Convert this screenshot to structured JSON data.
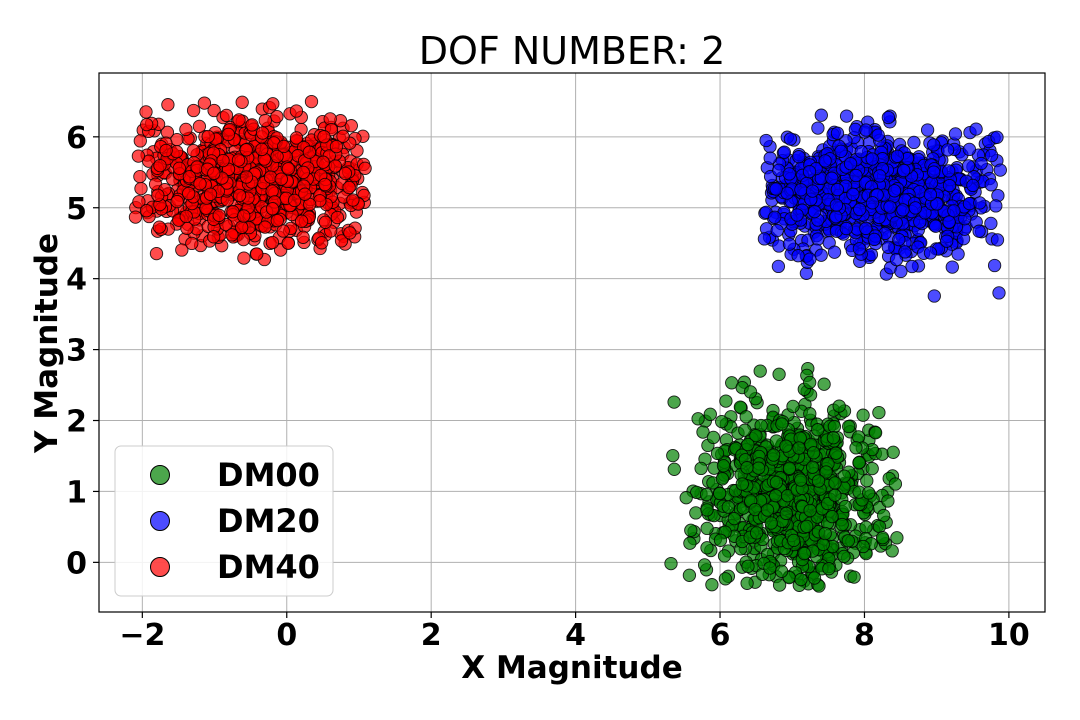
{
  "chart_data": {
    "type": "scatter",
    "title": "DOF NUMBER: 2",
    "xlabel": "X Magnitude",
    "ylabel": "Y Magnitude",
    "xlim": [
      -2.6,
      10.5
    ],
    "ylim": [
      -0.7,
      6.9
    ],
    "xticks": [
      -2,
      0,
      2,
      4,
      6,
      8,
      10
    ],
    "xtick_labels": [
      "−2",
      "0",
      "2",
      "4",
      "6",
      "8",
      "10"
    ],
    "yticks": [
      0,
      1,
      2,
      3,
      4,
      5,
      6
    ],
    "ytick_labels": [
      "0",
      "1",
      "2",
      "3",
      "4",
      "5",
      "6"
    ],
    "grid": true,
    "legend_position": "lower-left",
    "series": [
      {
        "name": "DM00",
        "color": "#008000",
        "center": [
          7.0,
          0.95
        ],
        "spread": [
          0.62,
          0.62
        ],
        "x_range": [
          5.3,
          8.5
        ],
        "y_range": [
          -0.35,
          2.8
        ],
        "count": 900
      },
      {
        "name": "DM20",
        "color": "#0000ff",
        "center": [
          8.1,
          5.2
        ],
        "spread": [
          0.9,
          0.42
        ],
        "x_range": [
          6.6,
          9.9
        ],
        "y_range": [
          3.5,
          6.4
        ],
        "count": 900
      },
      {
        "name": "DM40",
        "color": "#ff0000",
        "center": [
          -0.45,
          5.4
        ],
        "spread": [
          0.8,
          0.45
        ],
        "x_range": [
          -2.1,
          1.1
        ],
        "y_range": [
          4.2,
          6.55
        ],
        "count": 900
      }
    ]
  }
}
